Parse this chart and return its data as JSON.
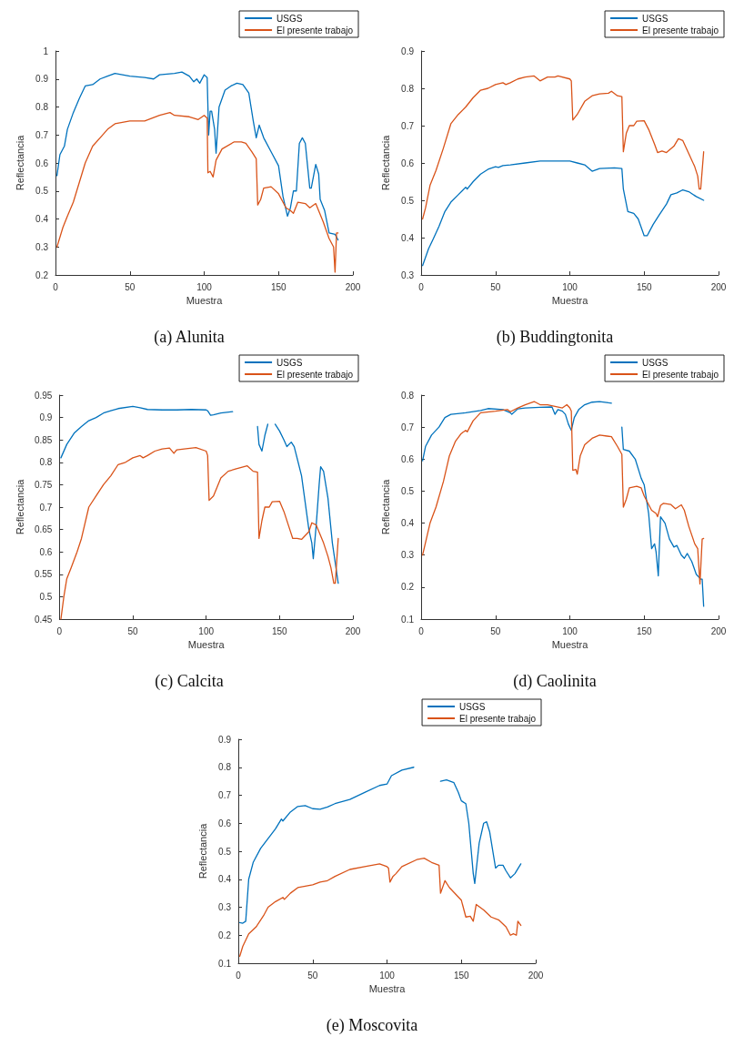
{
  "chart_data": [
    {
      "type": "line",
      "title": "(a) Alunita",
      "xlabel": "Muestra",
      "ylabel": "Reflectancia",
      "xlim": [
        0,
        200
      ],
      "xticks": [
        0,
        50,
        100,
        150,
        200
      ],
      "ylim": [
        0.2,
        1
      ],
      "yticks": [
        0.2,
        0.3,
        0.4,
        0.5,
        0.6,
        0.7,
        0.8,
        0.9,
        1
      ],
      "legend": "top right",
      "series": [
        {
          "name": "USGS",
          "color": "#0072bd",
          "x": [
            1,
            3,
            6,
            8,
            12,
            16,
            20,
            25,
            30,
            35,
            40,
            50,
            60,
            66,
            70,
            80,
            85,
            90,
            93,
            95,
            97,
            100,
            102,
            103,
            104,
            105,
            107,
            108,
            110,
            114,
            118,
            122,
            126,
            130,
            133,
            135,
            137,
            140,
            145,
            150,
            153,
            156,
            158,
            160,
            162,
            164,
            166,
            168,
            171,
            172,
            175,
            177,
            178,
            181,
            184,
            188,
            190
          ],
          "values": [
            0.555,
            0.63,
            0.66,
            0.72,
            0.78,
            0.83,
            0.875,
            0.88,
            0.9,
            0.91,
            0.92,
            0.91,
            0.905,
            0.9,
            0.915,
            0.92,
            0.925,
            0.91,
            0.89,
            0.9,
            0.885,
            0.915,
            0.905,
            0.7,
            0.785,
            0.785,
            0.72,
            0.635,
            0.8,
            0.86,
            0.875,
            0.885,
            0.88,
            0.85,
            0.75,
            0.69,
            0.735,
            0.69,
            0.64,
            0.59,
            0.48,
            0.41,
            0.44,
            0.5,
            0.5,
            0.67,
            0.69,
            0.67,
            0.51,
            0.51,
            0.595,
            0.56,
            0.47,
            0.43,
            0.35,
            0.345,
            0.325
          ]
        },
        {
          "name": "El presente trabajo",
          "color": "#d95319",
          "x": [
            1,
            5,
            8,
            12,
            16,
            20,
            25,
            30,
            35,
            40,
            50,
            60,
            70,
            77,
            80,
            90,
            96,
            100,
            102,
            102.5,
            104,
            106,
            108,
            112,
            120,
            125,
            128,
            132,
            135,
            136,
            138,
            140,
            145,
            150,
            155,
            158,
            160,
            163,
            168,
            171,
            175,
            180,
            184,
            187,
            188,
            189,
            190
          ],
          "values": [
            0.3,
            0.37,
            0.41,
            0.46,
            0.53,
            0.6,
            0.66,
            0.69,
            0.72,
            0.74,
            0.75,
            0.75,
            0.77,
            0.78,
            0.77,
            0.765,
            0.755,
            0.77,
            0.76,
            0.565,
            0.57,
            0.55,
            0.61,
            0.65,
            0.675,
            0.675,
            0.67,
            0.64,
            0.615,
            0.45,
            0.47,
            0.51,
            0.515,
            0.49,
            0.44,
            0.43,
            0.42,
            0.46,
            0.455,
            0.44,
            0.455,
            0.39,
            0.33,
            0.3,
            0.21,
            0.35,
            0.35
          ]
        }
      ]
    },
    {
      "type": "line",
      "title": "(b) Buddingtonita",
      "xlabel": "Muestra",
      "ylabel": "Reflectancia",
      "xlim": [
        0,
        200
      ],
      "xticks": [
        0,
        50,
        100,
        150,
        200
      ],
      "ylim": [
        0.3,
        0.9
      ],
      "yticks": [
        0.3,
        0.4,
        0.5,
        0.6,
        0.7,
        0.8,
        0.9
      ],
      "legend": "top right",
      "series": [
        {
          "name": "USGS",
          "color": "#0072bd",
          "x": [
            1,
            5,
            8,
            12,
            16,
            20,
            25,
            30,
            31,
            35,
            40,
            45,
            50,
            52,
            55,
            60,
            70,
            80,
            90,
            100,
            105,
            110,
            115,
            120,
            130,
            135,
            136,
            139,
            143,
            146,
            150,
            152,
            156,
            160,
            165,
            168,
            172,
            176,
            180,
            185,
            190
          ],
          "values": [
            0.325,
            0.37,
            0.395,
            0.43,
            0.47,
            0.495,
            0.515,
            0.535,
            0.53,
            0.55,
            0.57,
            0.583,
            0.59,
            0.588,
            0.593,
            0.595,
            0.6,
            0.605,
            0.605,
            0.605,
            0.6,
            0.595,
            0.578,
            0.585,
            0.587,
            0.585,
            0.53,
            0.47,
            0.465,
            0.45,
            0.405,
            0.405,
            0.435,
            0.46,
            0.49,
            0.515,
            0.52,
            0.528,
            0.523,
            0.51,
            0.5
          ]
        },
        {
          "name": "El presente trabajo",
          "color": "#d95319",
          "x": [
            1,
            3,
            6,
            10,
            15,
            20,
            25,
            30,
            35,
            40,
            45,
            50,
            55,
            57,
            60,
            65,
            70,
            76,
            80,
            85,
            90,
            92,
            100,
            101,
            102,
            105,
            110,
            115,
            120,
            126,
            128,
            132,
            135,
            136,
            138,
            140,
            143,
            145,
            150,
            153,
            157,
            159,
            162,
            165,
            170,
            173,
            176,
            180,
            184,
            186,
            187,
            188,
            190
          ],
          "values": [
            0.45,
            0.48,
            0.54,
            0.58,
            0.64,
            0.705,
            0.73,
            0.75,
            0.775,
            0.795,
            0.8,
            0.81,
            0.815,
            0.81,
            0.815,
            0.825,
            0.83,
            0.833,
            0.82,
            0.83,
            0.83,
            0.833,
            0.825,
            0.82,
            0.715,
            0.73,
            0.765,
            0.78,
            0.785,
            0.787,
            0.792,
            0.78,
            0.778,
            0.63,
            0.68,
            0.7,
            0.7,
            0.712,
            0.713,
            0.69,
            0.65,
            0.628,
            0.632,
            0.628,
            0.645,
            0.665,
            0.66,
            0.625,
            0.59,
            0.565,
            0.53,
            0.53,
            0.63
          ]
        }
      ]
    },
    {
      "type": "line",
      "title": "(c) Calcita",
      "xlabel": "Muestra",
      "ylabel": "Reflectancia",
      "xlim": [
        0,
        200
      ],
      "xticks": [
        0,
        50,
        100,
        150,
        200
      ],
      "ylim": [
        0.45,
        0.95
      ],
      "yticks": [
        0.45,
        0.5,
        0.55,
        0.6,
        0.65,
        0.7,
        0.75,
        0.8,
        0.85,
        0.9,
        0.95
      ],
      "legend": "top right",
      "series": [
        {
          "name": "USGS",
          "color": "#0072bd",
          "x": [
            1,
            5,
            10,
            15,
            20,
            25,
            30,
            35,
            40,
            50,
            55,
            60,
            70,
            80,
            90,
            100,
            101,
            103,
            105,
            110,
            118,
            126,
            135,
            136,
            138,
            140,
            142,
            144,
            147,
            150,
            153,
            155,
            158,
            160,
            165,
            170,
            172,
            173,
            175,
            177,
            178,
            180,
            183,
            186,
            190
          ],
          "values": [
            0.81,
            0.84,
            0.865,
            0.88,
            0.893,
            0.9,
            0.91,
            0.915,
            0.92,
            0.925,
            0.922,
            0.918,
            0.917,
            0.917,
            0.918,
            0.917,
            0.915,
            0.905,
            0.906,
            0.91,
            0.913,
            null,
            0.88,
            0.84,
            0.825,
            0.86,
            0.885,
            null,
            0.885,
            0.87,
            0.85,
            0.835,
            0.845,
            0.835,
            0.77,
            0.65,
            0.62,
            0.585,
            0.66,
            0.75,
            0.79,
            0.78,
            0.72,
            0.62,
            0.53
          ]
        },
        {
          "name": "El presente trabajo",
          "color": "#d95319",
          "x": [
            1,
            3,
            5,
            8,
            12,
            15,
            20,
            25,
            30,
            35,
            40,
            45,
            50,
            55,
            57,
            60,
            65,
            70,
            75,
            78,
            80,
            85,
            93,
            100,
            101,
            102,
            105,
            110,
            115,
            120,
            128,
            132,
            135,
            136,
            138,
            140,
            143,
            145,
            150,
            153,
            157,
            159,
            162,
            165,
            170,
            172,
            175,
            180,
            183,
            185,
            187,
            188,
            190
          ],
          "values": [
            0.45,
            0.5,
            0.54,
            0.565,
            0.6,
            0.63,
            0.7,
            0.725,
            0.75,
            0.77,
            0.795,
            0.8,
            0.81,
            0.815,
            0.81,
            0.815,
            0.825,
            0.83,
            0.832,
            0.82,
            0.828,
            0.83,
            0.833,
            0.825,
            0.815,
            0.715,
            0.725,
            0.765,
            0.78,
            0.785,
            0.792,
            0.78,
            0.778,
            0.63,
            0.67,
            0.7,
            0.7,
            0.712,
            0.713,
            0.69,
            0.65,
            0.63,
            0.63,
            0.628,
            0.645,
            0.665,
            0.66,
            0.62,
            0.59,
            0.565,
            0.53,
            0.53,
            0.63
          ]
        }
      ]
    },
    {
      "type": "line",
      "title": "(d) Caolinita",
      "xlabel": "Muestra",
      "ylabel": "Reflectancia",
      "xlim": [
        0,
        200
      ],
      "xticks": [
        0,
        50,
        100,
        150,
        200
      ],
      "ylim": [
        0.1,
        0.8
      ],
      "yticks": [
        0.1,
        0.2,
        0.3,
        0.4,
        0.5,
        0.6,
        0.7,
        0.8
      ],
      "legend": "top right",
      "series": [
        {
          "name": "USGS",
          "color": "#0072bd",
          "x": [
            1,
            3,
            7,
            12,
            16,
            20,
            30,
            40,
            45,
            55,
            60,
            61,
            65,
            70,
            80,
            88,
            90,
            92,
            95,
            97,
            99,
            101,
            103,
            106,
            110,
            115,
            120,
            126,
            128,
            130,
            135,
            136,
            140,
            144,
            148,
            150,
            153,
            155,
            157,
            158,
            159.5,
            160,
            161,
            164,
            167,
            170,
            172,
            175,
            177,
            179,
            182,
            185,
            188,
            189,
            190
          ],
          "values": [
            0.595,
            0.64,
            0.675,
            0.7,
            0.73,
            0.74,
            0.745,
            0.752,
            0.758,
            0.755,
            0.745,
            0.74,
            0.757,
            0.76,
            0.762,
            0.763,
            0.74,
            0.755,
            0.75,
            0.74,
            0.71,
            0.69,
            0.73,
            0.755,
            0.77,
            0.778,
            0.78,
            0.776,
            0.775,
            null,
            0.7,
            0.63,
            0.625,
            0.6,
            0.54,
            0.52,
            0.43,
            0.32,
            0.335,
            0.31,
            0.235,
            0.3,
            0.42,
            0.4,
            0.35,
            0.325,
            0.33,
            0.3,
            0.29,
            0.305,
            0.28,
            0.24,
            0.225,
            0.225,
            0.14
          ]
        },
        {
          "name": "El presente trabajo",
          "color": "#d95319",
          "x": [
            1,
            4,
            6,
            10,
            15,
            19,
            23,
            27,
            30,
            31,
            35,
            40,
            50,
            58,
            60,
            65,
            70,
            76,
            80,
            85,
            90,
            95,
            98,
            100,
            101,
            102,
            104,
            105,
            107,
            110,
            115,
            120,
            125,
            128,
            132,
            135,
            136,
            138,
            140,
            145,
            148,
            150,
            155,
            158,
            159,
            161,
            163,
            168,
            171,
            175,
            177,
            180,
            184,
            186,
            187.5,
            189,
            190
          ],
          "values": [
            0.3,
            0.36,
            0.4,
            0.45,
            0.53,
            0.61,
            0.655,
            0.68,
            0.69,
            0.685,
            0.72,
            0.745,
            0.75,
            0.755,
            0.748,
            0.76,
            0.77,
            0.78,
            0.77,
            0.77,
            0.765,
            0.76,
            0.77,
            0.76,
            0.75,
            0.565,
            0.568,
            0.553,
            0.61,
            0.645,
            0.665,
            0.675,
            0.672,
            0.67,
            0.64,
            0.615,
            0.45,
            0.475,
            0.51,
            0.515,
            0.51,
            0.485,
            0.44,
            0.43,
            0.42,
            0.455,
            0.462,
            0.458,
            0.445,
            0.457,
            0.44,
            0.39,
            0.335,
            0.32,
            0.21,
            0.35,
            0.352
          ]
        }
      ]
    },
    {
      "type": "line",
      "title": "(e) Moscovita",
      "xlabel": "Muestra",
      "ylabel": "Reflectancia",
      "xlim": [
        0,
        200
      ],
      "xticks": [
        0,
        50,
        100,
        150,
        200
      ],
      "ylim": [
        0.1,
        0.9
      ],
      "yticks": [
        0.1,
        0.2,
        0.3,
        0.4,
        0.5,
        0.6,
        0.7,
        0.8,
        0.9
      ],
      "legend": "top right",
      "series": [
        {
          "name": "USGS",
          "color": "#0072bd",
          "x": [
            1,
            3,
            5,
            7,
            10,
            15,
            20,
            25,
            29,
            30,
            35,
            40,
            45,
            50,
            55,
            60,
            65,
            75,
            85,
            95,
            100,
            103,
            110,
            118,
            125,
            136,
            140,
            145,
            148,
            150,
            153,
            155,
            158,
            159,
            162,
            165,
            167,
            169,
            173,
            175,
            178,
            180,
            183,
            186,
            190
          ],
          "values": [
            0.245,
            0.243,
            0.25,
            0.4,
            0.46,
            0.51,
            0.545,
            0.58,
            0.615,
            0.608,
            0.64,
            0.66,
            0.663,
            0.652,
            0.65,
            0.658,
            0.67,
            0.685,
            0.71,
            0.735,
            0.74,
            0.77,
            0.79,
            0.8,
            null,
            0.75,
            0.755,
            0.745,
            0.71,
            0.68,
            0.67,
            0.6,
            0.42,
            0.385,
            0.53,
            0.6,
            0.605,
            0.57,
            0.44,
            0.45,
            0.45,
            0.43,
            0.405,
            0.42,
            0.455
          ]
        },
        {
          "name": "El presente trabajo",
          "color": "#d95319",
          "x": [
            1,
            3,
            7,
            12,
            17,
            20,
            25,
            30,
            31,
            35,
            40,
            50,
            55,
            60,
            65,
            75,
            85,
            95,
            100,
            101,
            102,
            104,
            106,
            110,
            120,
            125,
            130,
            135,
            136,
            139,
            142,
            150,
            153,
            156,
            158,
            160,
            165,
            170,
            175,
            180,
            183,
            185,
            187,
            188,
            190
          ],
          "values": [
            0.125,
            0.16,
            0.205,
            0.23,
            0.27,
            0.3,
            0.32,
            0.335,
            0.328,
            0.35,
            0.37,
            0.38,
            0.39,
            0.395,
            0.41,
            0.435,
            0.445,
            0.455,
            0.445,
            0.44,
            0.39,
            0.41,
            0.42,
            0.445,
            0.47,
            0.475,
            0.46,
            0.45,
            0.35,
            0.395,
            0.37,
            0.325,
            0.265,
            0.268,
            0.25,
            0.31,
            0.29,
            0.265,
            0.255,
            0.23,
            0.2,
            0.205,
            0.2,
            0.25,
            0.235
          ]
        }
      ]
    }
  ]
}
